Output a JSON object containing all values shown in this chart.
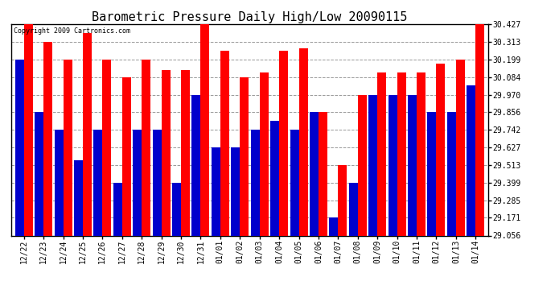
{
  "title": "Barometric Pressure Daily High/Low 20090115",
  "copyright": "Copyright 2009 Cartronics.com",
  "dates": [
    "12/22",
    "12/23",
    "12/24",
    "12/25",
    "12/26",
    "12/27",
    "12/28",
    "12/29",
    "12/30",
    "12/31",
    "01/01",
    "01/02",
    "01/03",
    "01/04",
    "01/05",
    "01/06",
    "01/07",
    "01/08",
    "01/09",
    "01/10",
    "01/11",
    "01/12",
    "01/13",
    "01/14"
  ],
  "highs": [
    30.427,
    30.313,
    30.199,
    30.37,
    30.199,
    30.084,
    30.199,
    30.13,
    30.13,
    30.427,
    30.256,
    30.084,
    30.113,
    30.256,
    30.27,
    29.856,
    29.513,
    29.97,
    30.113,
    30.113,
    30.113,
    30.17,
    30.199,
    30.427
  ],
  "lows": [
    30.199,
    29.856,
    29.742,
    29.542,
    29.742,
    29.399,
    29.742,
    29.742,
    29.399,
    29.97,
    29.627,
    29.627,
    29.742,
    29.799,
    29.742,
    29.856,
    29.171,
    29.399,
    29.97,
    29.97,
    29.97,
    29.856,
    29.856,
    30.028
  ],
  "high_color": "#ff0000",
  "low_color": "#0000cc",
  "bg_color": "#ffffff",
  "grid_color": "#999999",
  "title_fontsize": 11,
  "yticks": [
    29.056,
    29.171,
    29.285,
    29.399,
    29.513,
    29.627,
    29.742,
    29.856,
    29.97,
    30.084,
    30.199,
    30.313,
    30.427
  ],
  "ylim_low": 29.056,
  "ylim_high": 30.427,
  "bar_width": 0.45,
  "figwidth": 6.9,
  "figheight": 3.75,
  "dpi": 100
}
